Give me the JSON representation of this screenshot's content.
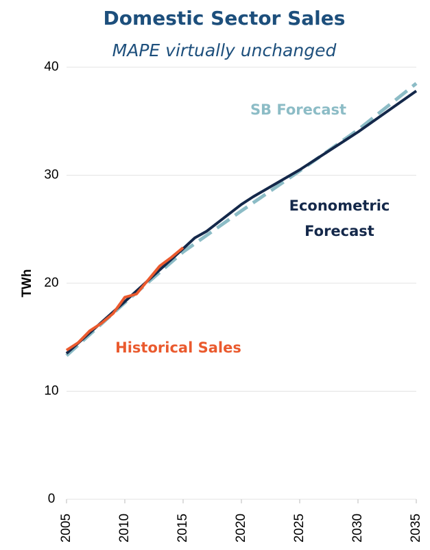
{
  "chart_data": {
    "type": "line",
    "title": "Domestic Sector Sales",
    "subtitle": "MAPE virtually unchanged",
    "ylabel": "TWh",
    "xlim": [
      2005,
      2035
    ],
    "xticks": [
      2005,
      2010,
      2015,
      2020,
      2025,
      2030,
      2035
    ],
    "ylim": [
      0,
      40
    ],
    "yticks": [
      0,
      10,
      20,
      30,
      40
    ],
    "grid": true,
    "series": [
      {
        "name": "SB Forecast",
        "color": "#8cbcc6",
        "dashed": true,
        "x": [
          2005,
          2010,
          2015,
          2020,
          2025,
          2030,
          2035
        ],
        "values": [
          13.3,
          18.2,
          22.9,
          26.7,
          30.4,
          34.2,
          38.5
        ]
      },
      {
        "name": "Econometric Forecast",
        "color": "#14284a",
        "x": [
          2005,
          2010,
          2015,
          2016,
          2017,
          2020,
          2021,
          2025,
          2030,
          2035
        ],
        "values": [
          13.5,
          18.3,
          23.2,
          24.2,
          24.8,
          27.3,
          28.0,
          30.5,
          34.0,
          37.8
        ]
      },
      {
        "name": "Historical Sales",
        "color": "#ea5a2e",
        "x": [
          2005,
          2006,
          2007,
          2008,
          2009,
          2010,
          2011,
          2012,
          2013,
          2014,
          2015
        ],
        "values": [
          13.8,
          14.5,
          15.6,
          16.3,
          17.2,
          18.7,
          19.0,
          20.3,
          21.6,
          22.4,
          23.3
        ]
      }
    ]
  }
}
